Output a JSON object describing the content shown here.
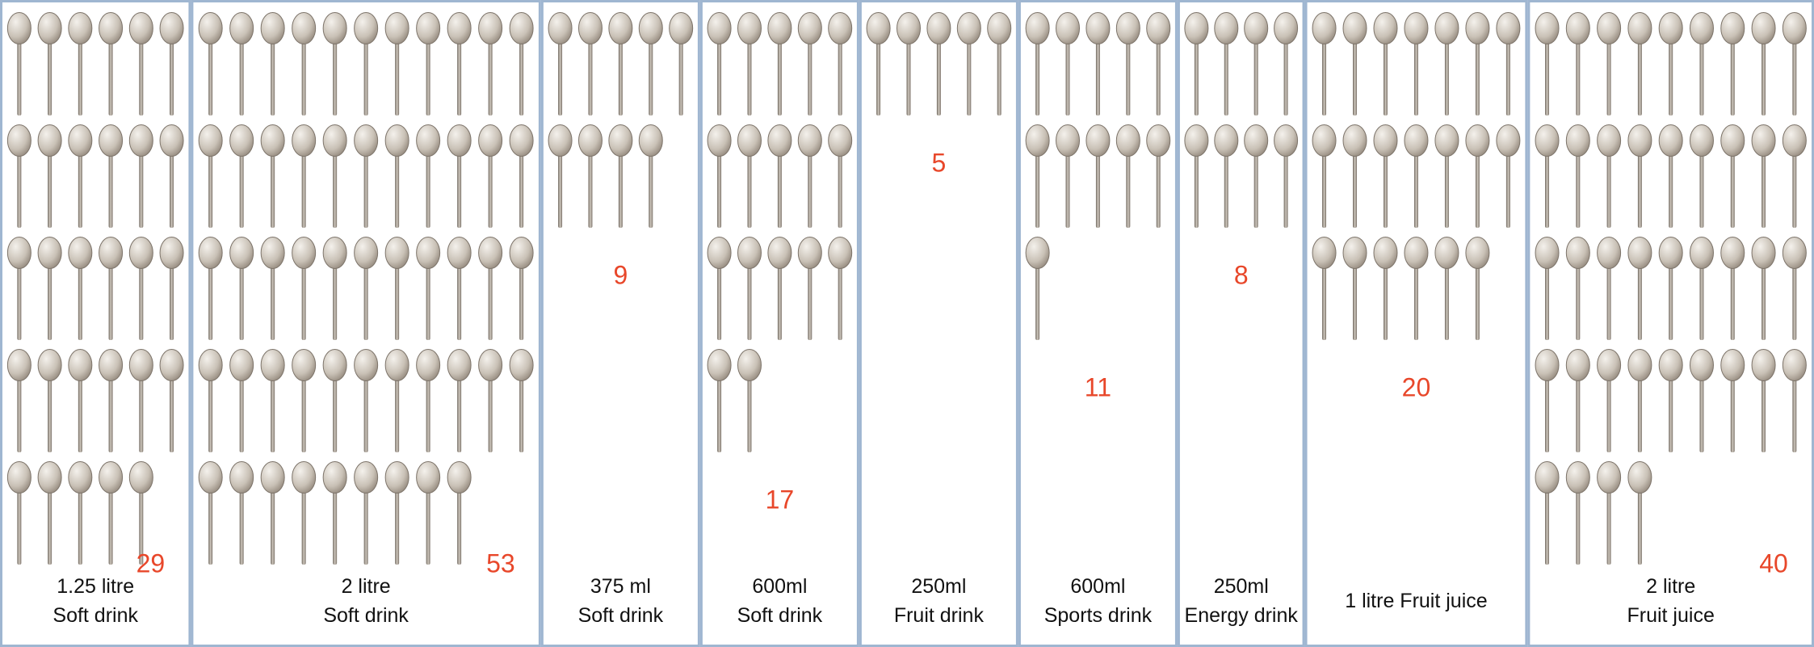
{
  "chart_data": {
    "type": "pictograph",
    "categories": [
      "1.25 litre\nSoft drink",
      "2 litre\nSoft drink",
      "375 ml\nSoft drink",
      "600ml\nSoft drink",
      "250ml\nFruit drink",
      "600ml\nSports drink",
      "250ml\nEnergy drink",
      "1 litre Fruit juice",
      "2 litre\nFruit juice"
    ],
    "values": [
      29,
      53,
      9,
      17,
      5,
      11,
      8,
      20,
      40
    ],
    "color": "#e8472a"
  }
}
